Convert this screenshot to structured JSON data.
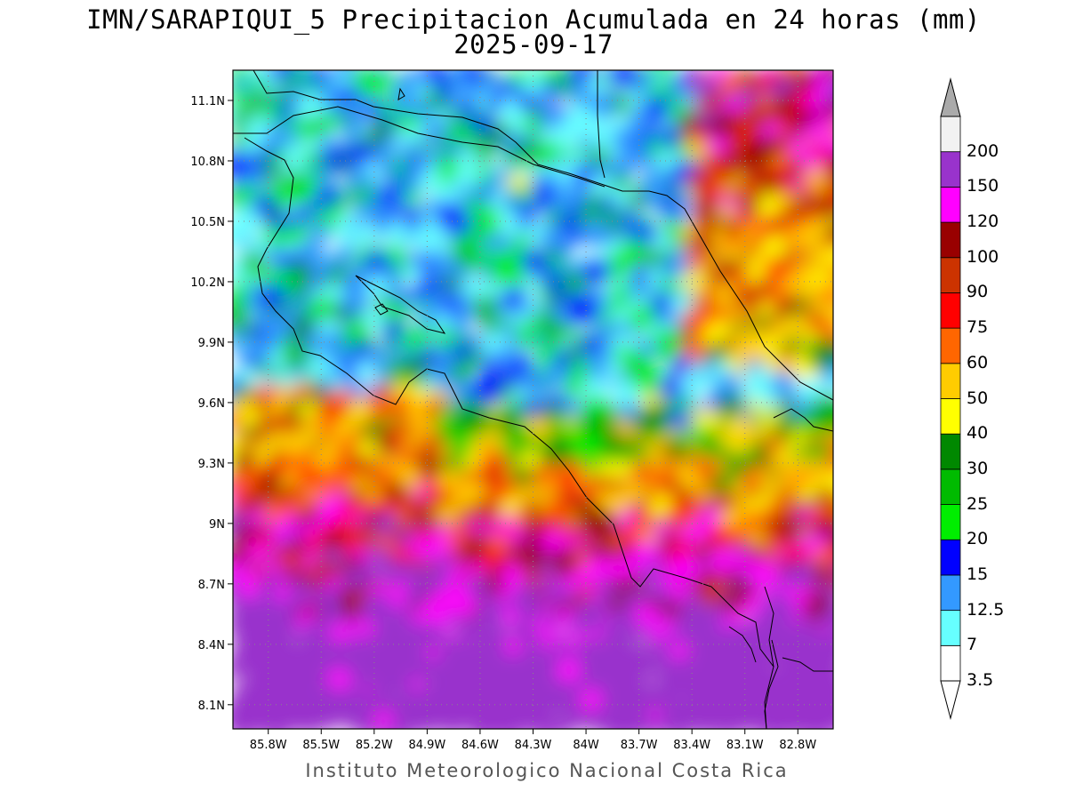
{
  "title_line1": "IMN/SARAPIQUI_5 Precipitacion Acumulada en 24 horas (mm)",
  "title_line2": "2025-09-17",
  "footer": "Instituto Meteorologico Nacional Costa Rica",
  "map": {
    "lon_range": [
      -86.0,
      -82.6
    ],
    "lat_range": [
      7.98,
      11.25
    ],
    "lon_ticks": [
      "85.8W",
      "85.5W",
      "85.2W",
      "84.9W",
      "84.6W",
      "84.3W",
      "84W",
      "83.7W",
      "83.4W",
      "83.1W",
      "82.8W"
    ],
    "lat_ticks": [
      "11.1N",
      "10.8N",
      "10.5N",
      "10.2N",
      "9.9N",
      "9.6N",
      "9.3N",
      "9N",
      "8.7N",
      "8.4N",
      "8.1N"
    ],
    "grid": "dotted"
  },
  "colorbar": {
    "levels": [
      "3.5",
      "7",
      "12.5",
      "15",
      "20",
      "25",
      "30",
      "40",
      "50",
      "60",
      "75",
      "90",
      "100",
      "120",
      "150",
      "200"
    ],
    "colors": [
      "#ffffff",
      "#66ffff",
      "#3399ff",
      "#0000ff",
      "#00ee00",
      "#00bb00",
      "#008800",
      "#ffff00",
      "#ffcc00",
      "#ff6600",
      "#ff0000",
      "#cc3300",
      "#990000",
      "#ff00ff",
      "#9933cc",
      "#f2f2f2",
      "#aaaaaa"
    ]
  }
}
